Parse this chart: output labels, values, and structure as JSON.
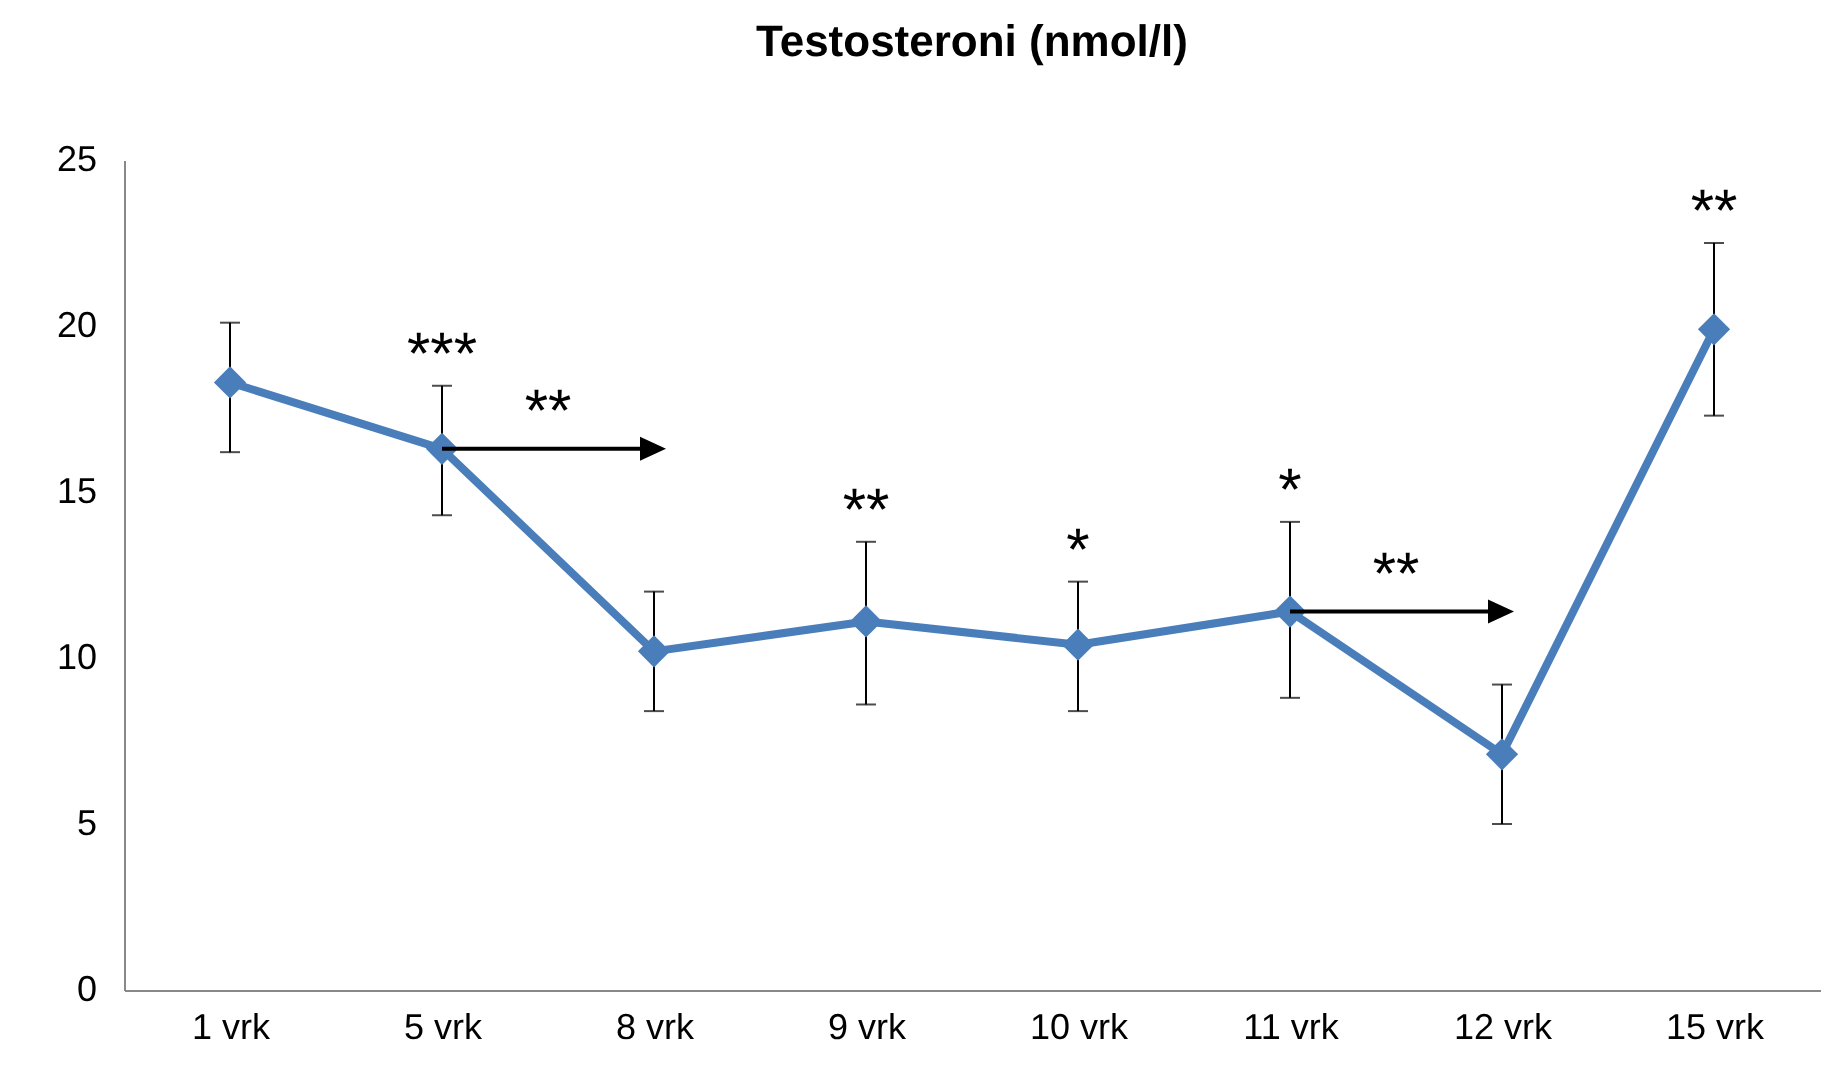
{
  "chart_data": {
    "type": "line",
    "title": "Testosteroni (nmol/l)",
    "categories": [
      "1 vrk",
      "5 vrk",
      "8 vrk",
      "9 vrk",
      "10 vrk",
      "11 vrk",
      "12 vrk",
      "15 vrk"
    ],
    "series": [
      {
        "color": "#4a7ebb",
        "values": [
          18.3,
          16.3,
          10.2,
          11.1,
          10.4,
          11.4,
          7.1,
          19.9
        ],
        "errors": [
          [
            16.2,
            20.1
          ],
          [
            14.3,
            18.2
          ],
          [
            8.4,
            12.0
          ],
          [
            8.6,
            13.5
          ],
          [
            8.4,
            12.3
          ],
          [
            8.8,
            14.1
          ],
          [
            5.0,
            9.2
          ],
          [
            17.3,
            22.5
          ]
        ]
      }
    ],
    "ylim": [
      0,
      25
    ],
    "yticks": [
      0,
      5,
      10,
      15,
      20,
      25
    ],
    "grid": false,
    "marker": "diamond",
    "line_style": "solid",
    "annotations": [
      {
        "text": "***",
        "x": "5 vrk",
        "y": 18.2
      },
      {
        "text": "**",
        "x": "5 vrk",
        "y": 16.3
      },
      {
        "text": "**",
        "x": "9 vrk",
        "y": 13.5
      },
      {
        "text": "*",
        "x": "10 vrk",
        "y": 12.3
      },
      {
        "text": "*",
        "x": "11 vrk",
        "y": 14.1
      },
      {
        "text": "**",
        "x": "11 vrk",
        "y": 11.4
      },
      {
        "text": "**",
        "x": "15 vrk",
        "y": 22.5
      }
    ]
  }
}
